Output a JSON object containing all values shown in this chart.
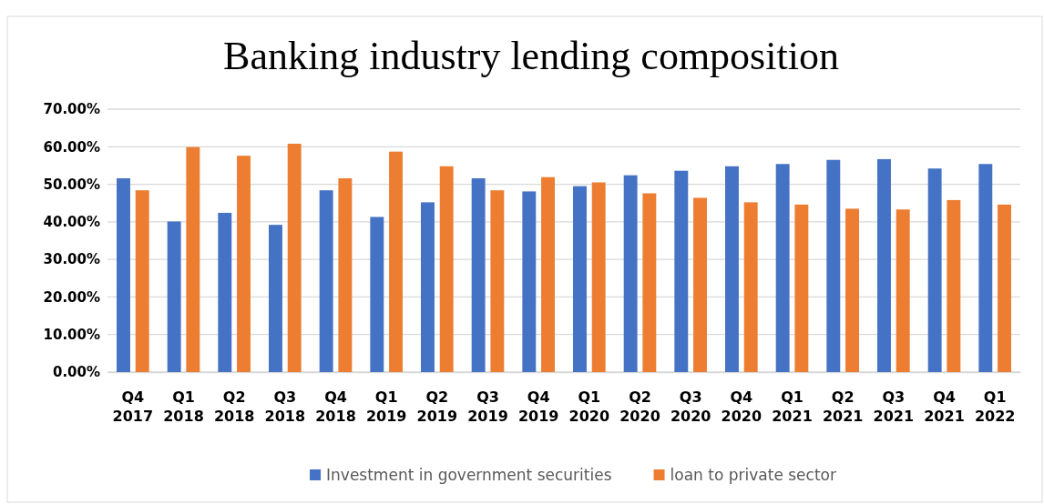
{
  "chart_data": {
    "type": "bar",
    "title": "Banking industry lending composition",
    "categories": [
      "Q4 2017",
      "Q1 2018",
      "Q2 2018",
      "Q3 2018",
      "Q4 2018",
      "Q1 2019",
      "Q2 2019",
      "Q3 2019",
      "Q4 2019",
      "Q1 2020",
      "Q2 2020",
      "Q3 2020",
      "Q4 2020",
      "Q1 2021",
      "Q2 2021",
      "Q3 2021",
      "Q4 2021",
      "Q1 2022"
    ],
    "series": [
      {
        "name": "Investment in government securities",
        "color": "#4472c4",
        "values": [
          51.6,
          40.1,
          42.4,
          39.2,
          48.4,
          41.3,
          45.2,
          51.6,
          48.1,
          49.5,
          52.4,
          53.6,
          54.8,
          55.4,
          56.5,
          56.7,
          54.2,
          55.4
        ]
      },
      {
        "name": "loan to private sector",
        "color": "#ed7d31",
        "values": [
          48.4,
          59.9,
          57.6,
          60.8,
          51.6,
          58.7,
          54.8,
          48.4,
          51.9,
          50.5,
          47.6,
          46.4,
          45.2,
          44.6,
          43.5,
          43.3,
          45.8,
          44.6
        ]
      }
    ],
    "ylim": [
      0,
      70
    ],
    "yticks": [
      {
        "value": 0,
        "label": "0.00%"
      },
      {
        "value": 10,
        "label": "10.00%"
      },
      {
        "value": 20,
        "label": "20.00%"
      },
      {
        "value": 30,
        "label": "30.00%"
      },
      {
        "value": 40,
        "label": "40.00%"
      },
      {
        "value": 50,
        "label": "50.00%"
      },
      {
        "value": 60,
        "label": "60.00%"
      },
      {
        "value": 70,
        "label": "70.00%"
      }
    ],
    "grid": "y",
    "legend": "bottom"
  }
}
